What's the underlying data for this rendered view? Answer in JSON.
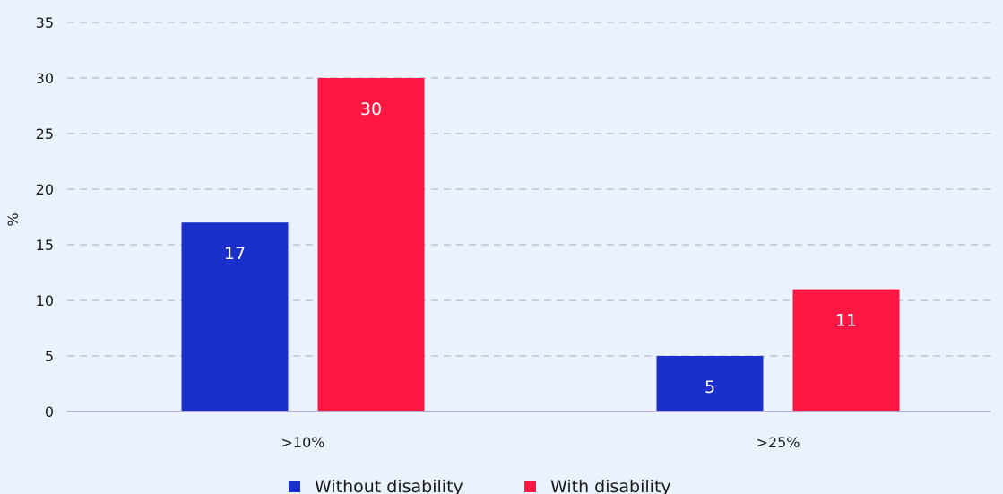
{
  "chart_data": {
    "type": "bar",
    "categories": [
      ">10%",
      ">25%"
    ],
    "series": [
      {
        "name": "Without disability",
        "values": [
          17,
          5
        ],
        "color": "#1b2fca"
      },
      {
        "name": "With disability",
        "values": [
          30,
          11
        ],
        "color": "#ff1744"
      }
    ],
    "ylabel": "%",
    "xlabel": "",
    "ylim": [
      0,
      35
    ],
    "yticks": [
      0,
      5,
      10,
      15,
      20,
      25,
      30,
      35
    ],
    "grid": "dashed-horizontal",
    "legend_position": "bottom-center"
  },
  "colors": {
    "background": "#eaf3fd",
    "grid": "#a9aeb8",
    "axis": "#b7afd0"
  }
}
